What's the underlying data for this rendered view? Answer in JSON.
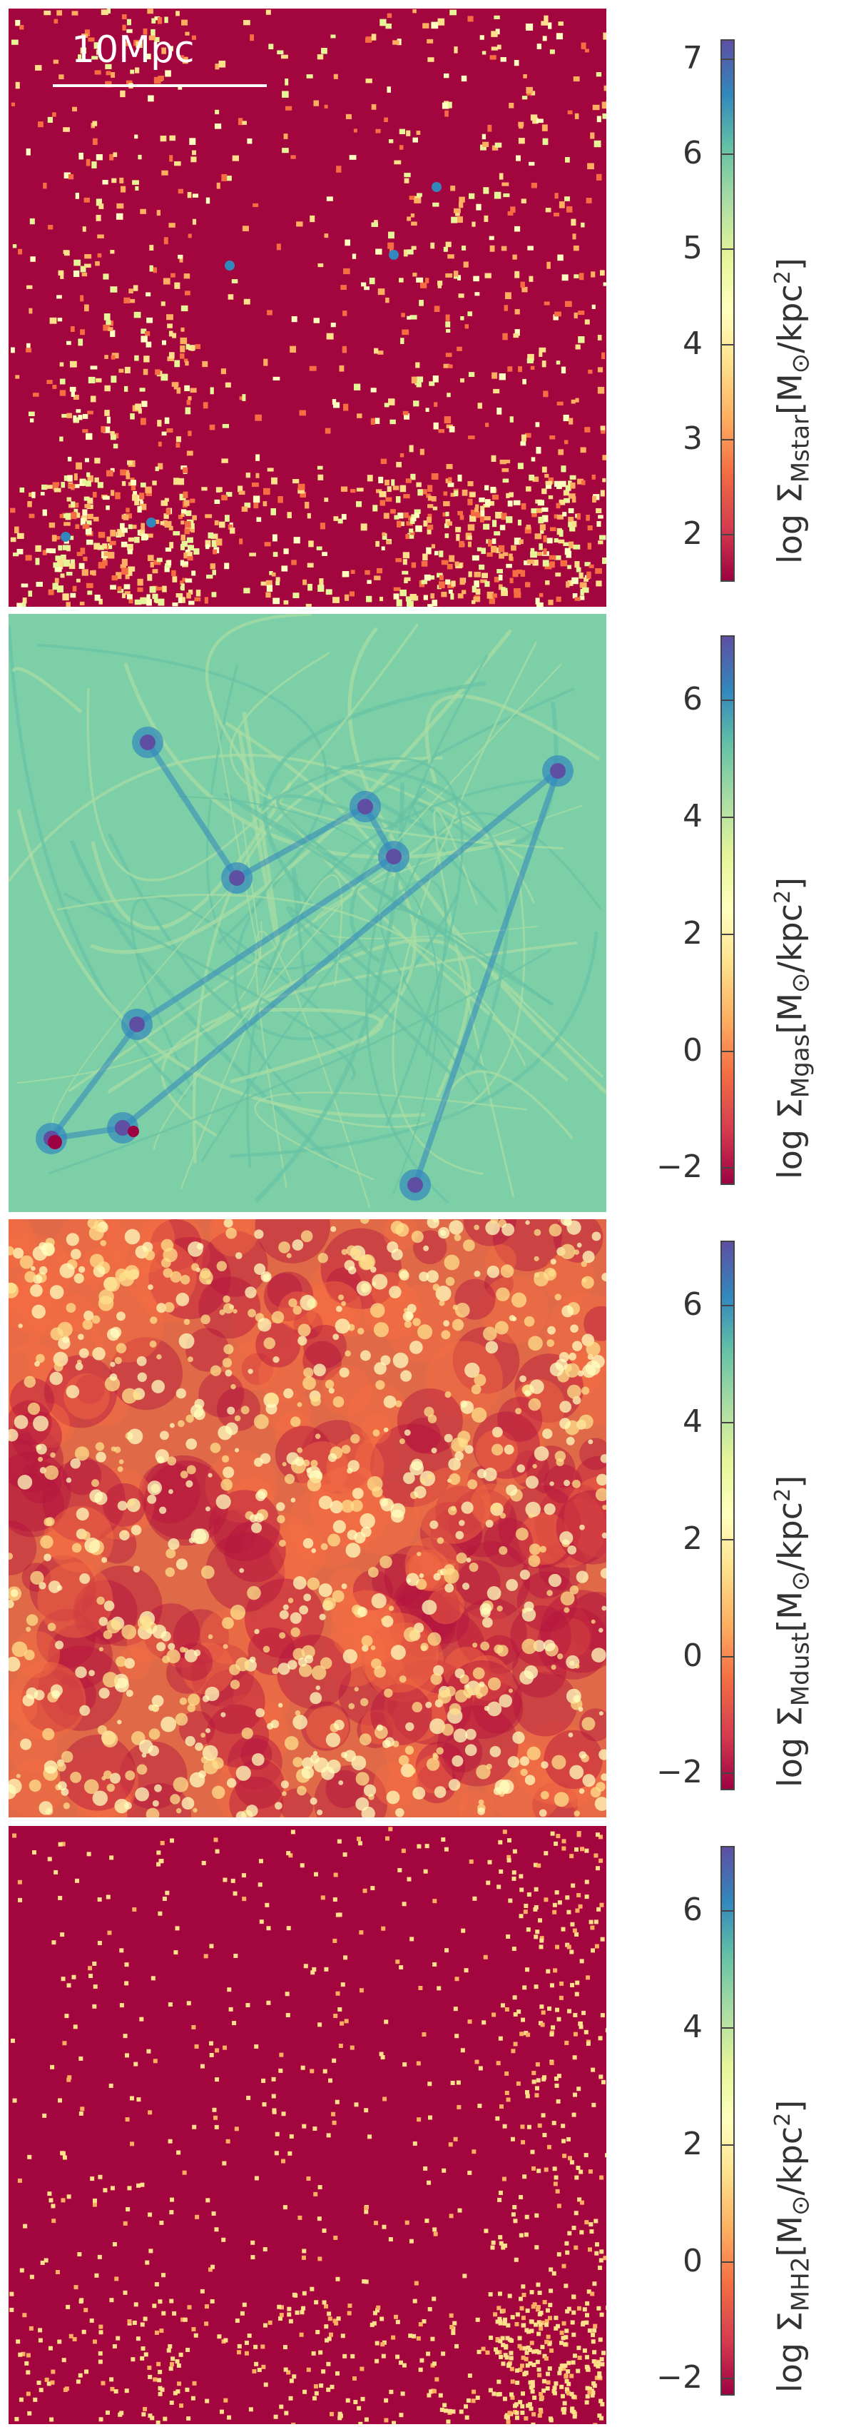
{
  "scale_bar": {
    "label": "10Mpc"
  },
  "panels": [
    {
      "id": "mstar",
      "subscript": "Mstar",
      "label_prefix": "log Σ",
      "unit_open": "[M",
      "unit_sun": "⊙",
      "unit_rest": "/kpc",
      "unit_exp": "2",
      "unit_close": "]",
      "ticks": [
        "7",
        "6",
        "5",
        "4",
        "3",
        "2"
      ],
      "range": [
        1.5,
        7.2
      ],
      "background": "#a3053f"
    },
    {
      "id": "mgas",
      "subscript": "Mgas",
      "label_prefix": "log Σ",
      "unit_open": "[M",
      "unit_sun": "⊙",
      "unit_rest": "/kpc",
      "unit_exp": "2",
      "unit_close": "]",
      "ticks": [
        "6",
        "4",
        "2",
        "0",
        "−2"
      ],
      "range": [
        -2.3,
        7.1
      ],
      "background": "#7ccfa7"
    },
    {
      "id": "mdust",
      "subscript": "Mdust",
      "label_prefix": "log Σ",
      "unit_open": "[M",
      "unit_sun": "⊙",
      "unit_rest": "/kpc",
      "unit_exp": "2",
      "unit_close": "]",
      "ticks": [
        "6",
        "4",
        "2",
        "0",
        "−2"
      ],
      "range": [
        -2.3,
        7.1
      ],
      "background": "#e06a47"
    },
    {
      "id": "mh2",
      "subscript": "MH2",
      "label_prefix": "log Σ",
      "unit_open": "[M",
      "unit_sun": "⊙",
      "unit_rest": "/kpc",
      "unit_exp": "2",
      "unit_close": "]",
      "ticks": [
        "6",
        "4",
        "2",
        "0",
        "−2"
      ],
      "range": [
        -2.3,
        7.1
      ],
      "background": "#a3053f"
    }
  ],
  "colormap": [
    "#9e0142",
    "#d53e4f",
    "#f46d43",
    "#fdae61",
    "#fee08b",
    "#ffffbf",
    "#e6f598",
    "#abdda4",
    "#66c2a5",
    "#3288bd",
    "#5e4fa2"
  ]
}
